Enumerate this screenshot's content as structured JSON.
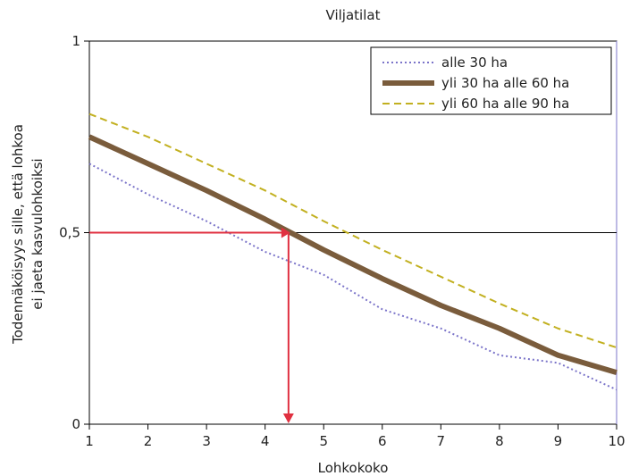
{
  "chart_data": {
    "type": "line",
    "title": "Viljatilat",
    "xlabel": "Lohkokoko",
    "ylabel_line1": "Todennäköisyys sille, että lohkoa",
    "ylabel_line2": "ei jaeta kasvulohkoiksi",
    "xlim": [
      1,
      10
    ],
    "ylim": [
      0,
      1
    ],
    "x_ticks": [
      "1",
      "2",
      "3",
      "4",
      "5",
      "6",
      "7",
      "8",
      "9",
      "10"
    ],
    "y_ticks": [
      {
        "label": "0",
        "value": 0
      },
      {
        "label": "0,5",
        "value": 0.5
      },
      {
        "label": "1",
        "value": 1
      }
    ],
    "x": [
      1,
      2,
      3,
      4,
      5,
      6,
      7,
      8,
      9,
      10
    ],
    "series": [
      {
        "name": "alle 30 ha",
        "color": "#7b74c9",
        "style": "dotted",
        "values": [
          0.68,
          0.6,
          0.53,
          0.45,
          0.39,
          0.3,
          0.25,
          0.18,
          0.16,
          0.09
        ]
      },
      {
        "name": "yli 30 ha alle 60 ha",
        "color": "#7a5c3c",
        "style": "thick",
        "values": [
          0.75,
          0.68,
          0.61,
          0.535,
          0.455,
          0.38,
          0.31,
          0.25,
          0.18,
          0.135
        ]
      },
      {
        "name": "yli 60 ha alle 90 ha",
        "color": "#c2b020",
        "style": "dashed",
        "values": [
          0.81,
          0.75,
          0.68,
          0.61,
          0.53,
          0.455,
          0.385,
          0.315,
          0.25,
          0.2
        ]
      }
    ],
    "reference_line": {
      "y": 0.5,
      "color": "#000000"
    },
    "annotation_arrows": {
      "color": "#e03040",
      "x_at": 4.43,
      "y_at": 0.5
    },
    "legend_position": "top-right",
    "grid": false
  }
}
